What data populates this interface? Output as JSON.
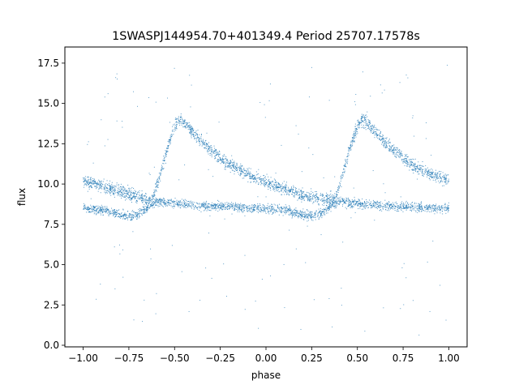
{
  "chart_data": {
    "type": "scatter",
    "title": "1SWASPJ144954.70+401349.4 Period 25707.17578s",
    "xlabel": "phase",
    "ylabel": "flux",
    "xlim": [
      -1.1,
      1.1
    ],
    "ylim": [
      -0.1,
      18.5
    ],
    "xticks": [
      -1.0,
      -0.75,
      -0.5,
      -0.25,
      0.0,
      0.25,
      0.5,
      0.75,
      1.0
    ],
    "xtick_labels": [
      "−1.00",
      "−0.75",
      "−0.50",
      "−0.25",
      "0.00",
      "0.25",
      "0.50",
      "0.75",
      "1.00"
    ],
    "yticks": [
      0.0,
      2.5,
      5.0,
      7.5,
      10.0,
      12.5,
      15.0,
      17.5
    ],
    "ytick_labels": [
      "0.0",
      "2.5",
      "5.0",
      "7.5",
      "10.0",
      "12.5",
      "15.0",
      "17.5"
    ],
    "grid": false,
    "marker_color": "#1f77b4",
    "series": [
      {
        "description_role": "pulsating branch (rise near phase -0.62 and 0.38, peak ~14 at -0.47 and 0.53, decline to ~9.5 before next rise)",
        "x": [
          -1.0,
          -0.9,
          -0.8,
          -0.7,
          -0.65,
          -0.62,
          -0.58,
          -0.54,
          -0.5,
          -0.47,
          -0.44,
          -0.4,
          -0.35,
          -0.3,
          -0.25,
          -0.2,
          -0.15,
          -0.1,
          -0.05,
          0.0,
          0.05,
          0.1,
          0.15,
          0.2,
          0.25,
          0.3,
          0.35,
          0.38,
          0.42,
          0.46,
          0.5,
          0.53,
          0.56,
          0.6,
          0.65,
          0.7,
          0.75,
          0.8,
          0.85,
          0.9,
          0.95,
          1.0
        ],
        "y": [
          10.2,
          9.9,
          9.5,
          9.2,
          9.0,
          9.1,
          10.5,
          12.2,
          13.6,
          14.0,
          13.7,
          13.2,
          12.6,
          12.1,
          11.6,
          11.2,
          10.9,
          10.6,
          10.3,
          10.1,
          9.9,
          9.7,
          9.5,
          9.3,
          9.2,
          9.1,
          9.0,
          9.1,
          10.6,
          12.3,
          13.6,
          14.0,
          13.7,
          13.2,
          12.6,
          12.1,
          11.6,
          11.2,
          10.9,
          10.6,
          10.4,
          10.2
        ]
      },
      {
        "description_role": "flat branch (~8.5, dipping to ~8.0 near phase -0.75 and 0.25, ~9 around -0.6 and 0.4)",
        "x": [
          -1.0,
          -0.9,
          -0.8,
          -0.75,
          -0.7,
          -0.65,
          -0.6,
          -0.5,
          -0.4,
          -0.3,
          -0.2,
          -0.1,
          0.0,
          0.1,
          0.2,
          0.25,
          0.3,
          0.35,
          0.4,
          0.5,
          0.6,
          0.7,
          0.8,
          0.9,
          1.0
        ],
        "y": [
          8.5,
          8.4,
          8.1,
          8.0,
          8.1,
          8.5,
          8.9,
          8.8,
          8.7,
          8.6,
          8.6,
          8.5,
          8.5,
          8.4,
          8.1,
          8.0,
          8.2,
          8.6,
          8.9,
          8.8,
          8.7,
          8.6,
          8.6,
          8.5,
          8.5
        ]
      }
    ],
    "outlier_range": [
      0.5,
      17.5
    ]
  }
}
